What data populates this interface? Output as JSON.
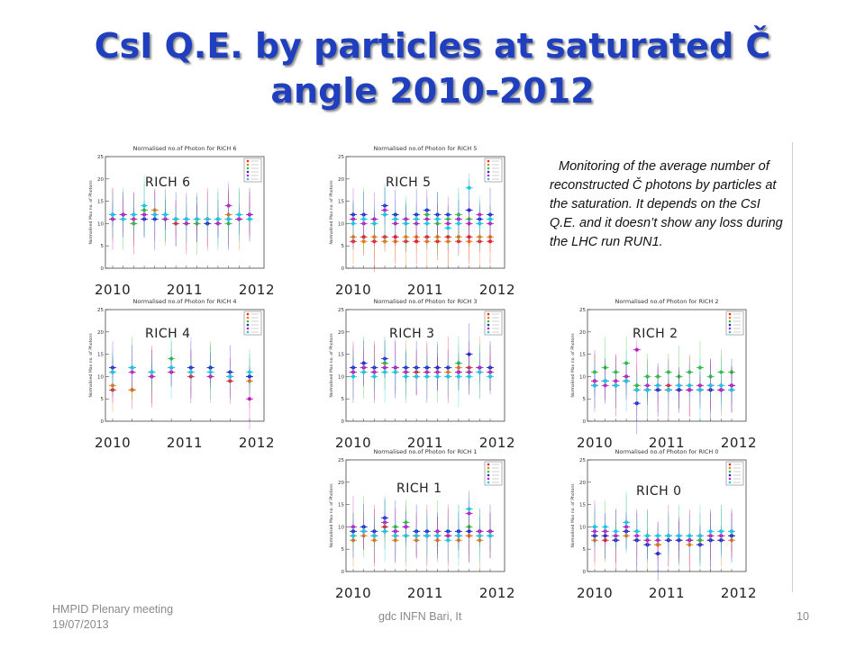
{
  "slide": {
    "title_line1": "CsI Q.E. by particles at saturated Č",
    "title_line2": "angle 2010-2012",
    "note": {
      "line1": "Monitoring of the average number  of",
      "line2": "reconstructed Č  photons by particles at",
      "line3": "the saturation. It depends on the CsI",
      "line4": "Q.E. and it doesn’t show any loss during",
      "line5": "the LHC run RUN1."
    },
    "footer": {
      "left_line1": "HMPID Plenary meeting",
      "left_line2": "19/07/2013",
      "center": "gdc INFN Bari, It",
      "page": "10"
    }
  },
  "colors": {
    "title": "#1f3fbf",
    "series": [
      "#e8202a",
      "#f07a10",
      "#36c23a",
      "#1e2fd0",
      "#c01ec0",
      "#18c8e6"
    ]
  },
  "chart_data": [
    {
      "type": "scatter",
      "id": "rich6",
      "label": "RICH 6",
      "plot_title": "Normalised no.of Photon for RICH 6",
      "ylabel": "Normalised Max no. of Photons",
      "ylim": [
        0,
        25
      ],
      "yticks": [
        0,
        5,
        10,
        15,
        20,
        25
      ],
      "years": [
        "2010",
        "2011",
        "2012"
      ],
      "series": [
        {
          "values": [
            11,
            12,
            10,
            11,
            12,
            11,
            10,
            11,
            10,
            11,
            10,
            11,
            11,
            12
          ]
        },
        {
          "values": [
            12,
            12,
            11,
            12,
            13,
            12,
            11,
            10,
            11,
            10,
            11,
            12,
            11,
            11
          ]
        },
        {
          "values": [
            11,
            11,
            10,
            13,
            12,
            11,
            11,
            10,
            10,
            11,
            11,
            10,
            12,
            11
          ]
        },
        {
          "values": [
            12,
            12,
            12,
            11,
            11,
            12,
            11,
            11,
            11,
            10,
            11,
            11,
            11,
            12
          ]
        },
        {
          "values": [
            11,
            12,
            11,
            12,
            12,
            11,
            11,
            10,
            11,
            11,
            10,
            14,
            11,
            12
          ]
        },
        {
          "values": [
            12,
            11,
            12,
            14,
            12,
            12,
            11,
            11,
            11,
            11,
            11,
            11,
            12,
            11
          ]
        }
      ]
    },
    {
      "type": "scatter",
      "id": "rich5",
      "label": "RICH 5",
      "plot_title": "Normalised no.of Photon for RICH 5",
      "ylabel": "Normalised Max no. of Photons",
      "ylim": [
        0,
        25
      ],
      "yticks": [
        0,
        5,
        10,
        15,
        20,
        25
      ],
      "years": [
        "2010",
        "2011",
        "2012"
      ],
      "series": [
        {
          "values": [
            6,
            7,
            6,
            7,
            7,
            6,
            6,
            7,
            6,
            7,
            6,
            7,
            6,
            6
          ]
        },
        {
          "values": [
            7,
            6,
            7,
            6,
            6,
            7,
            7,
            6,
            7,
            6,
            7,
            6,
            7,
            7
          ]
        },
        {
          "values": [
            11,
            11,
            10,
            12,
            11,
            10,
            11,
            12,
            10,
            11,
            12,
            11,
            10,
            11
          ]
        },
        {
          "values": [
            12,
            12,
            11,
            14,
            12,
            11,
            12,
            13,
            12,
            12,
            11,
            13,
            11,
            12
          ]
        },
        {
          "values": [
            11,
            10,
            11,
            13,
            10,
            11,
            10,
            11,
            11,
            10,
            11,
            10,
            12,
            10
          ]
        },
        {
          "values": [
            10,
            11,
            10,
            12,
            11,
            10,
            11,
            10,
            11,
            9,
            10,
            18,
            10,
            11
          ]
        }
      ]
    },
    {
      "type": "scatter",
      "id": "rich4",
      "label": "RICH 4",
      "plot_title": "Normalised no.of Photon for RICH 4",
      "ylabel": "Normalised Max no. of Photons",
      "ylim": [
        0,
        25
      ],
      "yticks": [
        0,
        5,
        10,
        15,
        20,
        25
      ],
      "years": [
        "2010",
        "2011",
        "2012"
      ],
      "series": [
        {
          "values": [
            7,
            7,
            10,
            11,
            10,
            10,
            9,
            10
          ]
        },
        {
          "values": [
            8,
            7,
            11,
            12,
            11,
            11,
            10,
            9
          ]
        },
        {
          "values": [
            11,
            12,
            11,
            14,
            12,
            12,
            10,
            10
          ]
        },
        {
          "values": [
            12,
            12,
            11,
            12,
            12,
            12,
            11,
            10
          ]
        },
        {
          "values": [
            11,
            11,
            10,
            11,
            11,
            10,
            10,
            5
          ]
        },
        {
          "values": [
            11,
            12,
            11,
            12,
            11,
            11,
            10,
            11
          ]
        }
      ]
    },
    {
      "type": "scatter",
      "id": "rich3",
      "label": "RICH 3",
      "plot_title": "Normalised no.of Photon for RICH 3",
      "ylabel": "Normalised Max no. of Photons",
      "ylim": [
        0,
        25
      ],
      "yticks": [
        0,
        5,
        10,
        15,
        20,
        25
      ],
      "years": [
        "2010",
        "2011",
        "2012"
      ],
      "series": [
        {
          "values": [
            11,
            12,
            11,
            13,
            12,
            11,
            11,
            12,
            11,
            12,
            11,
            12,
            11,
            12
          ]
        },
        {
          "values": [
            11,
            11,
            12,
            12,
            11,
            12,
            12,
            11,
            12,
            11,
            12,
            11,
            12,
            11
          ]
        },
        {
          "values": [
            12,
            12,
            11,
            13,
            12,
            11,
            12,
            12,
            11,
            12,
            13,
            11,
            12,
            11
          ]
        },
        {
          "values": [
            12,
            13,
            12,
            14,
            12,
            12,
            12,
            12,
            12,
            12,
            11,
            15,
            12,
            12
          ]
        },
        {
          "values": [
            11,
            12,
            11,
            12,
            12,
            11,
            10,
            11,
            11,
            10,
            11,
            11,
            12,
            11
          ]
        },
        {
          "values": [
            10,
            11,
            10,
            11,
            11,
            10,
            10,
            10,
            10,
            10,
            10,
            10,
            11,
            10
          ]
        }
      ]
    },
    {
      "type": "scatter",
      "id": "rich2",
      "label": "RICH 2",
      "plot_title": "Normalised no.of Photon for RICH 2",
      "ylabel": "Normalised Max no. of Photons",
      "ylim": [
        0,
        25
      ],
      "yticks": [
        0,
        5,
        10,
        15,
        20,
        25
      ],
      "years": [
        "2010",
        "2011",
        "2012"
      ],
      "series": [
        {
          "values": [
            8,
            9,
            8,
            9,
            7,
            7,
            7,
            8,
            7,
            8,
            7,
            8,
            7,
            7
          ]
        },
        {
          "values": [
            9,
            9,
            8,
            10,
            8,
            7,
            8,
            7,
            8,
            7,
            8,
            7,
            8,
            8
          ]
        },
        {
          "values": [
            11,
            12,
            11,
            13,
            8,
            10,
            10,
            11,
            10,
            11,
            12,
            10,
            11,
            11
          ]
        },
        {
          "values": [
            8,
            9,
            8,
            9,
            4,
            7,
            7,
            7,
            7,
            7,
            7,
            7,
            7,
            8
          ]
        },
        {
          "values": [
            9,
            8,
            9,
            10,
            16,
            8,
            8,
            7,
            8,
            7,
            8,
            8,
            7,
            8
          ]
        },
        {
          "values": [
            8,
            9,
            8,
            9,
            7,
            7,
            8,
            7,
            8,
            8,
            7,
            8,
            8,
            7
          ]
        }
      ]
    },
    {
      "type": "scatter",
      "id": "rich1",
      "label": "RICH 1",
      "plot_title": "Normalised no.of Photon for RICH 1",
      "ylabel": "Normalised Max no. of Photons",
      "ylim": [
        0,
        25
      ],
      "yticks": [
        0,
        5,
        10,
        15,
        20,
        25
      ],
      "years": [
        "2010",
        "2011",
        "2012"
      ],
      "series": [
        {
          "values": [
            8,
            9,
            8,
            10,
            8,
            8,
            8,
            8,
            8,
            8,
            8,
            8,
            8,
            8
          ]
        },
        {
          "values": [
            7,
            8,
            7,
            9,
            7,
            8,
            7,
            8,
            7,
            8,
            7,
            8,
            7,
            8
          ]
        },
        {
          "values": [
            9,
            10,
            9,
            11,
            10,
            11,
            9,
            8,
            9,
            9,
            9,
            10,
            9,
            9
          ]
        },
        {
          "values": [
            9,
            10,
            9,
            12,
            9,
            10,
            9,
            9,
            8,
            9,
            9,
            9,
            9,
            9
          ]
        },
        {
          "values": [
            10,
            9,
            8,
            11,
            9,
            10,
            8,
            8,
            9,
            8,
            8,
            13,
            9,
            9
          ]
        },
        {
          "values": [
            8,
            9,
            8,
            9,
            8,
            8,
            8,
            8,
            8,
            7,
            8,
            14,
            8,
            8
          ]
        }
      ]
    },
    {
      "type": "scatter",
      "id": "rich0",
      "label": "RICH 0",
      "plot_title": "Normalised no.of Photon for RICH 0",
      "ylabel": "Normalised Max no. of Photons",
      "ylim": [
        0,
        25
      ],
      "yticks": [
        0,
        5,
        10,
        15,
        20,
        25
      ],
      "years": [
        "2010",
        "2011",
        "2012"
      ],
      "series": [
        {
          "values": [
            8,
            7,
            7,
            9,
            7,
            6,
            6,
            7,
            7,
            7,
            6,
            7,
            7,
            8
          ]
        },
        {
          "values": [
            7,
            8,
            7,
            8,
            7,
            7,
            6,
            7,
            7,
            6,
            7,
            7,
            8,
            7
          ]
        },
        {
          "values": [
            10,
            9,
            8,
            11,
            9,
            8,
            8,
            8,
            8,
            8,
            7,
            8,
            9,
            8
          ]
        },
        {
          "values": [
            8,
            8,
            7,
            9,
            7,
            6,
            4,
            7,
            7,
            7,
            6,
            7,
            7,
            8
          ]
        },
        {
          "values": [
            9,
            9,
            8,
            10,
            8,
            7,
            7,
            8,
            8,
            7,
            8,
            8,
            8,
            9
          ]
        },
        {
          "values": [
            10,
            10,
            9,
            11,
            9,
            8,
            8,
            8,
            8,
            8,
            8,
            9,
            9,
            9
          ]
        }
      ]
    }
  ]
}
